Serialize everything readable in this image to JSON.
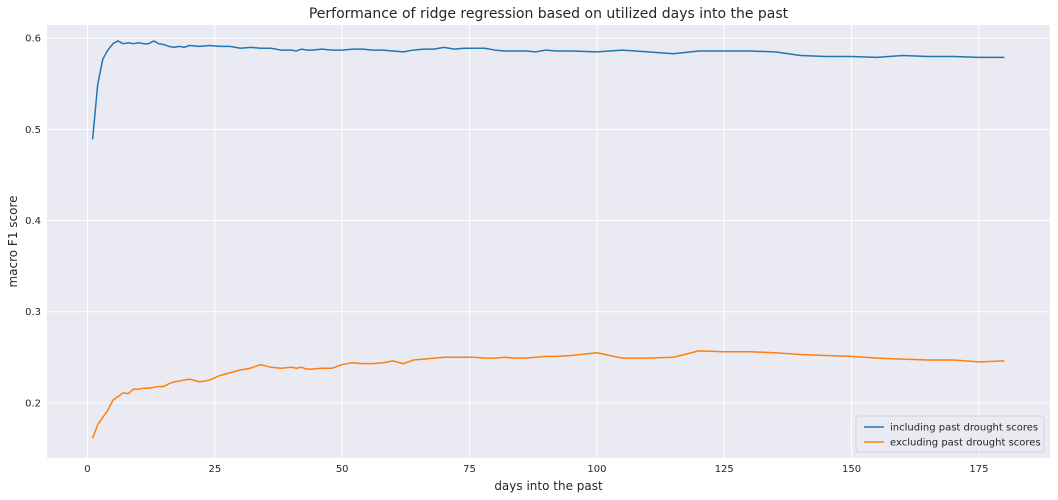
{
  "chart_data": {
    "type": "line",
    "title": "Performance of ridge regression based on utilized days into the past",
    "xlabel": "days into the past",
    "ylabel": "macro F1 score",
    "xlim": [
      -7.95,
      188.95
    ],
    "ylim": [
      0.1395,
      0.6145
    ],
    "xticks": [
      0,
      25,
      50,
      75,
      100,
      125,
      150,
      175
    ],
    "yticks": [
      0.2,
      0.3,
      0.4,
      0.5,
      0.6
    ],
    "ytick_labels": [
      "0.2",
      "0.3",
      "0.4",
      "0.5",
      "0.6"
    ],
    "grid": true,
    "background": "#eaeaf2",
    "legend_placement": "lower-right",
    "series": [
      {
        "name": "including past drought scores",
        "color": "#1f77b4",
        "x": [
          1,
          2,
          3,
          4,
          5,
          6,
          7,
          8,
          9,
          10,
          11,
          12,
          13,
          14,
          15,
          16,
          17,
          18,
          19,
          20,
          22,
          24,
          26,
          28,
          30,
          32,
          34,
          36,
          38,
          40,
          41,
          42,
          43,
          44,
          46,
          48,
          50,
          52,
          54,
          56,
          58,
          60,
          62,
          64,
          66,
          68,
          70,
          72,
          74,
          76,
          78,
          80,
          82,
          84,
          86,
          88,
          90,
          92,
          95,
          100,
          105,
          110,
          115,
          120,
          125,
          130,
          135,
          140,
          145,
          150,
          155,
          160,
          165,
          170,
          175,
          180
        ],
        "y": [
          0.489,
          0.549,
          0.577,
          0.587,
          0.594,
          0.597,
          0.594,
          0.595,
          0.594,
          0.595,
          0.594,
          0.594,
          0.597,
          0.594,
          0.593,
          0.591,
          0.59,
          0.591,
          0.59,
          0.592,
          0.591,
          0.592,
          0.591,
          0.591,
          0.589,
          0.59,
          0.589,
          0.589,
          0.587,
          0.587,
          0.586,
          0.588,
          0.587,
          0.587,
          0.588,
          0.587,
          0.587,
          0.588,
          0.588,
          0.587,
          0.587,
          0.586,
          0.585,
          0.587,
          0.588,
          0.588,
          0.59,
          0.588,
          0.589,
          0.589,
          0.589,
          0.587,
          0.586,
          0.586,
          0.586,
          0.585,
          0.587,
          0.586,
          0.586,
          0.585,
          0.587,
          0.585,
          0.583,
          0.586,
          0.586,
          0.586,
          0.585,
          0.581,
          0.58,
          0.58,
          0.579,
          0.581,
          0.58,
          0.58,
          0.579,
          0.579
        ]
      },
      {
        "name": "excluding past drought scores",
        "color": "#ff7f0e",
        "x": [
          1,
          2,
          3,
          4,
          5,
          6,
          7,
          8,
          9,
          10,
          11,
          12,
          13,
          14,
          15,
          16,
          17,
          18,
          19,
          20,
          22,
          24,
          26,
          28,
          30,
          32,
          34,
          36,
          38,
          40,
          41,
          42,
          43,
          44,
          46,
          48,
          50,
          52,
          54,
          56,
          58,
          60,
          62,
          64,
          66,
          68,
          70,
          72,
          74,
          76,
          78,
          80,
          82,
          84,
          86,
          88,
          90,
          92,
          95,
          100,
          105,
          110,
          115,
          120,
          125,
          130,
          135,
          140,
          145,
          150,
          155,
          160,
          165,
          170,
          175,
          180
        ],
        "y": [
          0.161,
          0.176,
          0.184,
          0.192,
          0.203,
          0.207,
          0.211,
          0.21,
          0.215,
          0.215,
          0.216,
          0.216,
          0.217,
          0.218,
          0.218,
          0.221,
          0.223,
          0.224,
          0.225,
          0.226,
          0.223,
          0.225,
          0.23,
          0.233,
          0.236,
          0.238,
          0.242,
          0.239,
          0.238,
          0.239,
          0.238,
          0.239,
          0.237,
          0.237,
          0.238,
          0.238,
          0.242,
          0.244,
          0.243,
          0.243,
          0.244,
          0.246,
          0.243,
          0.247,
          0.248,
          0.249,
          0.25,
          0.25,
          0.25,
          0.25,
          0.249,
          0.249,
          0.25,
          0.249,
          0.249,
          0.25,
          0.251,
          0.251,
          0.252,
          0.255,
          0.249,
          0.249,
          0.25,
          0.257,
          0.256,
          0.256,
          0.255,
          0.253,
          0.252,
          0.251,
          0.249,
          0.248,
          0.247,
          0.247,
          0.245,
          0.246
        ]
      }
    ]
  }
}
